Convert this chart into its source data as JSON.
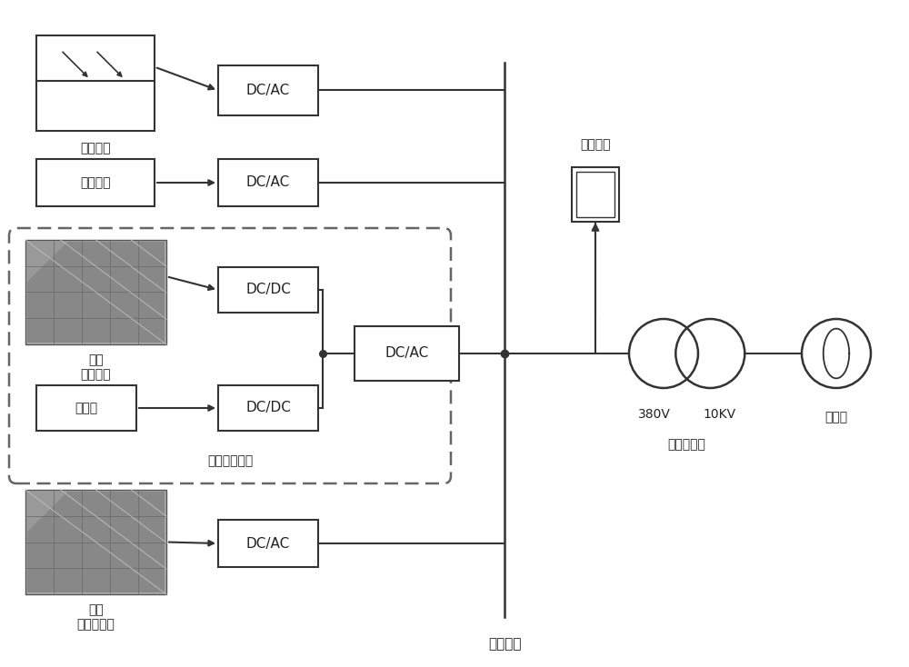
{
  "bg_color": "#ffffff",
  "lc": "#333333",
  "tc": "#222222",
  "figsize": [
    10.0,
    7.34
  ],
  "dpi": 100,
  "labels": {
    "pv_station": "光伏电站",
    "storage": "储能装置",
    "pv_module": "户用\n光伏组件",
    "battery": "蓄电池",
    "household_storage": "户用光储装置",
    "uncontrol_pv": "户用\n不可控光伏",
    "ce_control": "测控装置",
    "voltage_380": "380V",
    "voltage_10kv": "10KV",
    "transformer": "台区变压器",
    "grid": "大电网",
    "bus": "低压每线"
  }
}
